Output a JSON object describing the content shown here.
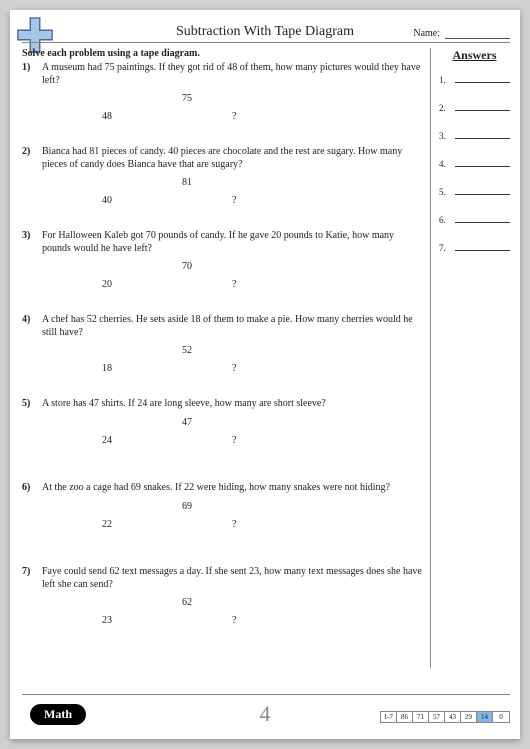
{
  "title": "Subtraction With Tape Diagram",
  "name_label": "Name:",
  "instruction": "Solve each problem using a tape diagram.",
  "answers_title": "Answers",
  "page_number": "4",
  "math_label": "Math",
  "problems": [
    {
      "num": "1)",
      "text": "A museum had 75 paintings. If they got rid of 48 of them, how many pictures would they have left?",
      "total": "75",
      "part1": "48",
      "part2": "?"
    },
    {
      "num": "2)",
      "text": "Bianca had 81 pieces of candy. 40 pieces are chocolate and the rest are sugary. How many pieces of candy does Bianca have that are sugary?",
      "total": "81",
      "part1": "40",
      "part2": "?"
    },
    {
      "num": "3)",
      "text": "For Halloween Kaleb got 70 pounds of candy. If he gave 20 pounds to Katie, how many pounds would he have left?",
      "total": "70",
      "part1": "20",
      "part2": "?"
    },
    {
      "num": "4)",
      "text": "A chef has 52 cherries. He sets aside 18 of them to make a pie. How many cherries would he still have?",
      "total": "52",
      "part1": "18",
      "part2": "?"
    },
    {
      "num": "5)",
      "text": "A store has 47 shirts. If 24 are long sleeve, how many are short sleeve?",
      "total": "47",
      "part1": "24",
      "part2": "?"
    },
    {
      "num": "6)",
      "text": "At the zoo a cage had 69 snakes. If 22 were hiding, how many snakes were not hiding?",
      "total": "69",
      "part1": "22",
      "part2": "?"
    },
    {
      "num": "7)",
      "text": "Faye could send 62 text messages a day. If she sent 23, how many text messages does she have left she can send?",
      "total": "62",
      "part1": "23",
      "part2": "?"
    }
  ],
  "answer_numbers": [
    "1.",
    "2.",
    "3.",
    "4.",
    "5.",
    "6.",
    "7."
  ],
  "score": {
    "label": "1-7",
    "cells": [
      "86",
      "71",
      "57",
      "43",
      "29",
      "14",
      "0"
    ],
    "highlight_index": 5
  },
  "colors": {
    "page_bg": "#ffffff",
    "body_bg": "#d0d0d0",
    "highlight": "#7eb6e8",
    "logo_blue": "#a7c7e7",
    "logo_border": "#4a6a9a"
  }
}
